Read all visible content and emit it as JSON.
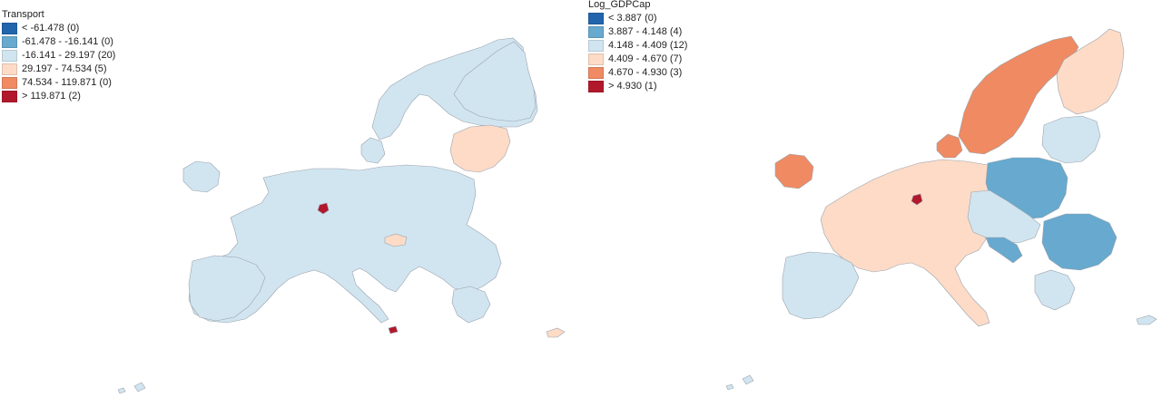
{
  "colors": {
    "c1": "#2166ac",
    "c2": "#67a9cf",
    "c3": "#d1e5f0",
    "c4": "#fddbc7",
    "c5": "#ef8a62",
    "c6": "#b2182b",
    "border": "#9aa3ad"
  },
  "maps": [
    {
      "legend_title": "Transport",
      "classes": [
        {
          "label": "< -61.478 (0)",
          "color": "#2166ac"
        },
        {
          "label": "-61.478 - -16.141 (0)",
          "color": "#67a9cf"
        },
        {
          "label": "-16.141 - 29.197 (20)",
          "color": "#d1e5f0"
        },
        {
          "label": "29.197 - 74.534 (5)",
          "color": "#fddbc7"
        },
        {
          "label": "74.534 - 119.871 (0)",
          "color": "#ef8a62"
        },
        {
          "label": "> 119.871 (2)",
          "color": "#b2182b"
        }
      ]
    },
    {
      "legend_title": "Log_GDPCap",
      "classes": [
        {
          "label": "< 3.887 (0)",
          "color": "#2166ac"
        },
        {
          "label": "3.887 - 4.148 (4)",
          "color": "#67a9cf"
        },
        {
          "label": "4.148 - 4.409 (12)",
          "color": "#d1e5f0"
        },
        {
          "label": "4.409 - 4.670 (7)",
          "color": "#fddbc7"
        },
        {
          "label": "4.670 - 4.930 (3)",
          "color": "#ef8a62"
        },
        {
          "label": "> 4.930 (1)",
          "color": "#b2182b"
        }
      ]
    }
  ]
}
